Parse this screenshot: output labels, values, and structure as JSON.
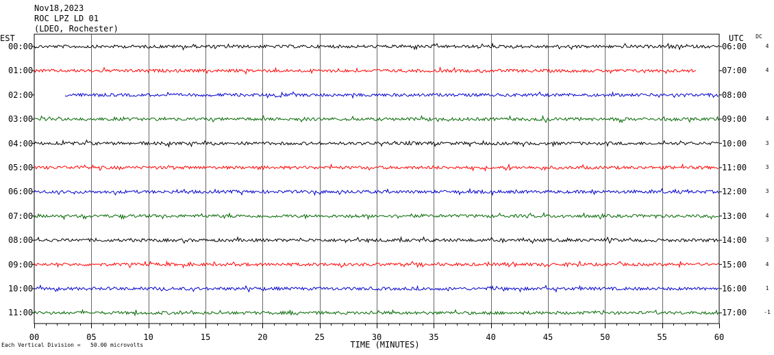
{
  "header": {
    "date": "Nov18,2023",
    "station": "ROC LPZ LD 01",
    "network": "(LDEO, Rochester)"
  },
  "left_axis_title": "EST",
  "right_axis_title": "UTC",
  "dc_title": "DC",
  "footnote": "Each Vertical Division =   50.00 microvolts",
  "chart_data": {
    "type": "line",
    "title": "",
    "xlabel": "TIME (MINUTES)",
    "x_ticks": [
      "00",
      "05",
      "10",
      "15",
      "20",
      "25",
      "30",
      "35",
      "40",
      "45",
      "50",
      "55",
      "60"
    ],
    "xlim": [
      0,
      60
    ],
    "grid": true,
    "series": [
      {
        "est": "00:00",
        "utc": "06:00",
        "dc": "4",
        "color": "#000000",
        "start_min": 0,
        "end_min": 60
      },
      {
        "est": "01:00",
        "utc": "07:00",
        "dc": "4",
        "color": "#ff0000",
        "start_min": 0,
        "end_min": 58
      },
      {
        "est": "02:00",
        "utc": "08:00",
        "dc": "",
        "color": "#0000cc",
        "start_min": 2.7,
        "end_min": 60
      },
      {
        "est": "03:00",
        "utc": "09:00",
        "dc": "4",
        "color": "#006600",
        "start_min": 0,
        "end_min": 60
      },
      {
        "est": "04:00",
        "utc": "10:00",
        "dc": "3",
        "color": "#000000",
        "start_min": 0,
        "end_min": 60
      },
      {
        "est": "05:00",
        "utc": "11:00",
        "dc": "3",
        "color": "#ff0000",
        "start_min": 0,
        "end_min": 60
      },
      {
        "est": "06:00",
        "utc": "12:00",
        "dc": "3",
        "color": "#0000cc",
        "start_min": 0,
        "end_min": 60
      },
      {
        "est": "07:00",
        "utc": "13:00",
        "dc": "4",
        "color": "#006600",
        "start_min": 0,
        "end_min": 60
      },
      {
        "est": "08:00",
        "utc": "14:00",
        "dc": "3",
        "color": "#000000",
        "start_min": 0,
        "end_min": 60
      },
      {
        "est": "09:00",
        "utc": "15:00",
        "dc": "4",
        "color": "#ff0000",
        "start_min": 0,
        "end_min": 60
      },
      {
        "est": "10:00",
        "utc": "16:00",
        "dc": "1",
        "color": "#0000cc",
        "start_min": 0,
        "end_min": 60
      },
      {
        "est": "11:00",
        "utc": "17:00",
        "dc": "-1",
        "color": "#006600",
        "start_min": 0,
        "end_min": 60
      }
    ]
  }
}
